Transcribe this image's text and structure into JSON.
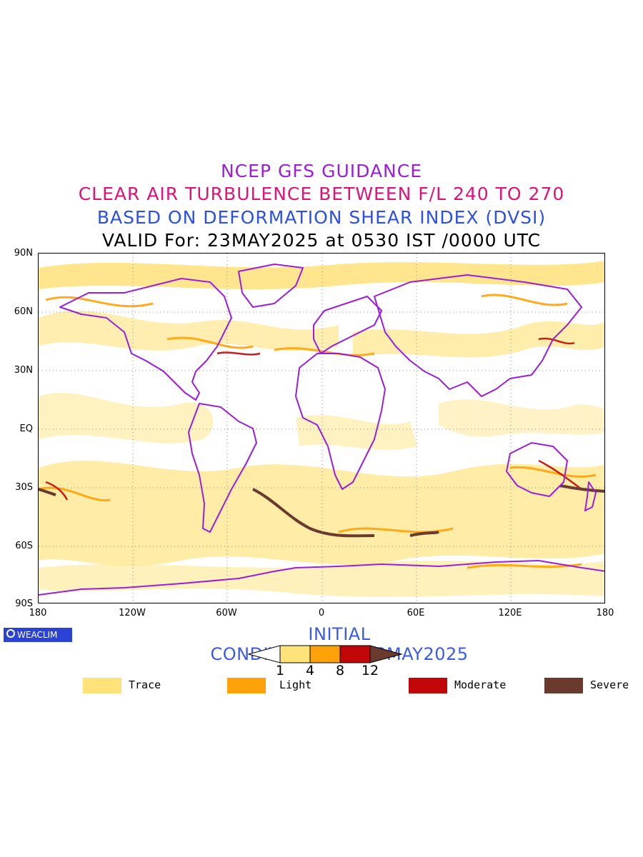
{
  "titles": {
    "line1": "NCEP GFS GUIDANCE",
    "line2": "CLEAR AIR TURBULENCE BETWEEN F/L 240 TO 270",
    "line3": "BASED ON DEFORMATION SHEAR INDEX (DVSI)",
    "line4": "VALID For: 23MAY2025 at 0530 IST /0000 UTC"
  },
  "axes": {
    "y_ticks": [
      "90N",
      "60N",
      "30N",
      "EQ",
      "30S",
      "60S",
      "90S"
    ],
    "x_ticks": [
      "180",
      "120W",
      "60W",
      "0",
      "60E",
      "120E",
      "180"
    ]
  },
  "map": {
    "projection": "cylindrical equidistant",
    "lon_range": [
      -180,
      180
    ],
    "lat_range": [
      -90,
      90
    ],
    "grid": "dotted every 30 degrees latitude / 60 degrees longitude",
    "coastline_color": "#9a1fd6",
    "severe_streak_color": "#6b3a2e"
  },
  "logo": {
    "text": "WEACLIM",
    "color": "#2a43d6"
  },
  "initial_conditions": "INITIAL CONDITIONS:00Z13MAY2025",
  "colorbar": {
    "ticks": [
      "1",
      "4",
      "8",
      "12"
    ],
    "colors": [
      "#ffffff",
      "#ffe27a",
      "#ffa20a",
      "#c10707",
      "#6b3a2e"
    ]
  },
  "legend": [
    {
      "label": "Trace",
      "color": "#ffe27a"
    },
    {
      "label": "Light",
      "color": "#ffa20a"
    },
    {
      "label": "Moderate",
      "color": "#c10707"
    },
    {
      "label": "Severe",
      "color": "#6b3a2e"
    }
  ]
}
